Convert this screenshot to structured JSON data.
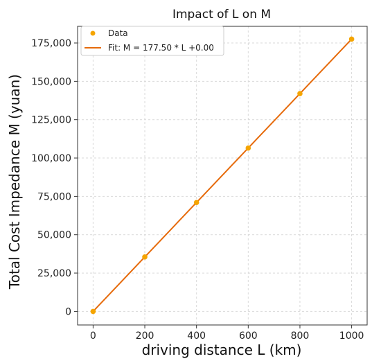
{
  "chart_data": {
    "type": "scatter",
    "title": "Impact of L on M",
    "xlabel": "driving distance L (km)",
    "ylabel": "Total Cost Impedance M (yuan)",
    "xlim": [
      -60,
      1060
    ],
    "ylim": [
      -8850,
      185850
    ],
    "xticks": [
      0,
      200,
      400,
      600,
      800,
      1000
    ],
    "yticks": [
      0,
      25000,
      50000,
      75000,
      100000,
      125000,
      150000,
      175000
    ],
    "xtick_labels": [
      "0",
      "200",
      "400",
      "600",
      "800",
      "1000"
    ],
    "ytick_labels": [
      "0",
      "25,000",
      "50,000",
      "75,000",
      "100,000",
      "125,000",
      "150,000",
      "175,000"
    ],
    "grid": true,
    "legend_position": "top-left",
    "series": [
      {
        "name": "Data",
        "kind": "scatter",
        "color": "#F5A500",
        "x": [
          0,
          200,
          400,
          600,
          800,
          1000
        ],
        "y": [
          0,
          35500,
          71000,
          106500,
          142000,
          177500
        ]
      },
      {
        "name": "Fit: M = 177.50 * L +0.00",
        "kind": "line",
        "color": "#E66A0A",
        "x": [
          0,
          1000
        ],
        "y": [
          0,
          177500
        ]
      }
    ]
  }
}
